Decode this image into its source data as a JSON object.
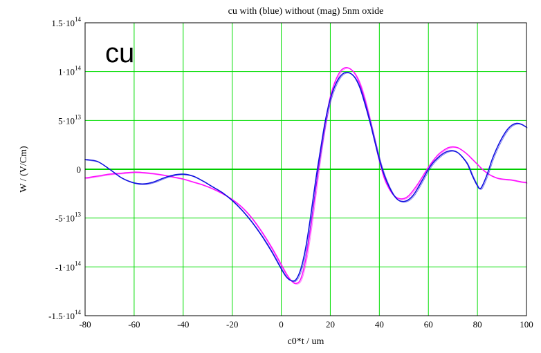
{
  "chart_data": {
    "type": "line",
    "title": "cu with (blue) without (mag) 5nm oxide",
    "annotation": "cu",
    "xlabel": "c0*t / um",
    "ylabel": "W / (V/Cm)",
    "xlim": [
      -80,
      100
    ],
    "ylim": [
      -150000000000000.0,
      150000000000000.0
    ],
    "x_ticks": [
      -80,
      -60,
      -40,
      -20,
      0,
      20,
      40,
      60,
      80,
      100
    ],
    "y_ticks": [
      {
        "value": 150000000000000.0,
        "mantissa": "1.5",
        "exp": "14",
        "neg": false
      },
      {
        "value": 100000000000000.0,
        "mantissa": "1",
        "exp": "14",
        "neg": false
      },
      {
        "value": 50000000000000.0,
        "mantissa": "5",
        "exp": "13",
        "neg": false
      },
      {
        "value": 0,
        "mantissa": "0",
        "exp": "",
        "neg": false
      },
      {
        "value": -50000000000000.0,
        "mantissa": "5",
        "exp": "13",
        "neg": true
      },
      {
        "value": -100000000000000.0,
        "mantissa": "1",
        "exp": "14",
        "neg": true
      },
      {
        "value": -150000000000000.0,
        "mantissa": "1.5",
        "exp": "14",
        "neg": true
      }
    ],
    "grid": true,
    "colors": {
      "grid": "#00dd00",
      "zero_line": "#00cc00",
      "blue": "#1010e0",
      "magenta": "#ff10ff"
    },
    "series": [
      {
        "color_key": "blue",
        "x": [
          -80,
          -75,
          -70,
          -65,
          -60,
          -56,
          -52,
          -48,
          -44,
          -40,
          -36,
          -32,
          -28,
          -24,
          -20,
          -16,
          -12,
          -8,
          -4,
          0,
          2,
          4,
          6,
          8,
          10,
          12,
          14,
          16,
          18,
          20,
          22,
          24,
          26,
          28,
          30,
          32,
          34,
          36,
          38,
          40,
          42,
          44,
          46,
          48,
          50,
          52,
          54,
          56,
          58,
          60,
          62,
          64,
          66,
          68,
          70,
          72,
          74,
          76,
          78,
          80,
          81,
          82,
          84,
          86,
          88,
          90,
          92,
          94,
          96,
          98,
          100
        ],
        "y": [
          10000000000000.0,
          8000000000000.0,
          0,
          -9000000000000.0,
          -14000000000000.0,
          -15000000000000.0,
          -13000000000000.0,
          -9000000000000.0,
          -6000000000000.0,
          -5000000000000.0,
          -7000000000000.0,
          -12000000000000.0,
          -18000000000000.0,
          -24000000000000.0,
          -32000000000000.0,
          -42000000000000.0,
          -54000000000000.0,
          -68000000000000.0,
          -84000000000000.0,
          -102000000000000.0,
          -110000000000000.0,
          -114000000000000.0,
          -113000000000000.0,
          -102000000000000.0,
          -80000000000000.0,
          -48000000000000.0,
          -12000000000000.0,
          20000000000000.0,
          50000000000000.0,
          72000000000000.0,
          86000000000000.0,
          95000000000000.0,
          99000000000000.0,
          98500000000000.0,
          94000000000000.0,
          84000000000000.0,
          68000000000000.0,
          50000000000000.0,
          30000000000000.0,
          10000000000000.0,
          -6000000000000.0,
          -18000000000000.0,
          -27000000000000.0,
          -32000000000000.0,
          -33000000000000.0,
          -31000000000000.0,
          -26000000000000.0,
          -18000000000000.0,
          -9000000000000.0,
          0,
          7000000000000.0,
          12000000000000.0,
          16000000000000.0,
          18500000000000.0,
          19000000000000.0,
          17000000000000.0,
          12000000000000.0,
          5000000000000.0,
          -7000000000000.0,
          -17000000000000.0,
          -20000000000000.0,
          -17000000000000.0,
          -5000000000000.0,
          10000000000000.0,
          22000000000000.0,
          32000000000000.0,
          40000000000000.0,
          45000000000000.0,
          47000000000000.0,
          46000000000000.0,
          43000000000000.0
        ]
      },
      {
        "color_key": "magenta",
        "x": [
          -80,
          -75,
          -70,
          -65,
          -60,
          -56,
          -52,
          -48,
          -44,
          -40,
          -36,
          -32,
          -28,
          -24,
          -20,
          -16,
          -12,
          -8,
          -4,
          0,
          2,
          4,
          6,
          8,
          10,
          12,
          14,
          16,
          18,
          20,
          22,
          24,
          26,
          28,
          30,
          32,
          34,
          36,
          38,
          40,
          42,
          44,
          46,
          48,
          50,
          52,
          54,
          56,
          58,
          60,
          62,
          64,
          66,
          68,
          70,
          72,
          74,
          76,
          78,
          80,
          82,
          84,
          86,
          88,
          90,
          92,
          94,
          96,
          98,
          100
        ],
        "y": [
          -9000000000000.0,
          -7000000000000.0,
          -5000000000000.0,
          -4000000000000.0,
          -3000000000000.0,
          -3500000000000.0,
          -4500000000000.0,
          -6000000000000.0,
          -8000000000000.0,
          -10000000000000.0,
          -13000000000000.0,
          -16000000000000.0,
          -20000000000000.0,
          -25000000000000.0,
          -31000000000000.0,
          -39000000000000.0,
          -50000000000000.0,
          -64000000000000.0,
          -80000000000000.0,
          -98000000000000.0,
          -107000000000000.0,
          -114000000000000.0,
          -117000000000000.0,
          -112000000000000.0,
          -92000000000000.0,
          -60000000000000.0,
          -22000000000000.0,
          16000000000000.0,
          48000000000000.0,
          74000000000000.0,
          90000000000000.0,
          100000000000000.0,
          104000000000000.0,
          103000000000000.0,
          98000000000000.0,
          88000000000000.0,
          72000000000000.0,
          52000000000000.0,
          30000000000000.0,
          9000000000000.0,
          -9000000000000.0,
          -20000000000000.0,
          -27000000000000.0,
          -30000000000000.0,
          -30000000000000.0,
          -27000000000000.0,
          -21000000000000.0,
          -14000000000000.0,
          -6000000000000.0,
          2000000000000.0,
          9000000000000.0,
          15000000000000.0,
          19000000000000.0,
          22000000000000.0,
          23000000000000.0,
          22000000000000.0,
          19000000000000.0,
          15000000000000.0,
          10000000000000.0,
          5000000000000.0,
          0,
          -4000000000000.0,
          -7000000000000.0,
          -9000000000000.0,
          -10000000000000.0,
          -10500000000000.0,
          -11000000000000.0,
          -12000000000000.0,
          -13000000000000.0,
          -13500000000000.0
        ]
      }
    ]
  }
}
